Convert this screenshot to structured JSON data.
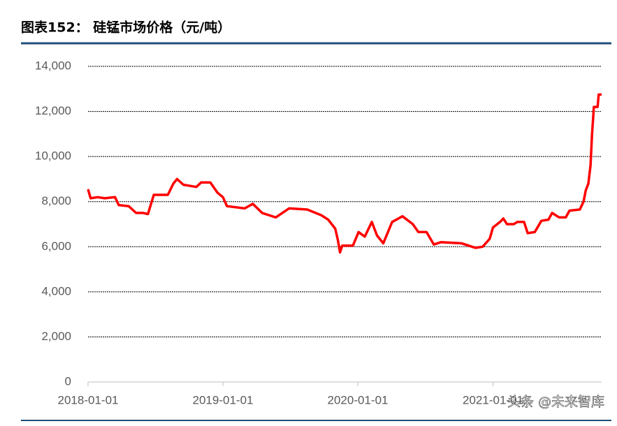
{
  "header": {
    "title": "图表152：  硅锰市场价格（元/吨）"
  },
  "watermark": "头条 @未来智库",
  "chart_data": {
    "type": "line",
    "x": [
      "2018-01-01",
      "2018-01-08",
      "2018-01-27",
      "2018-02-15",
      "2018-03-15",
      "2018-03-25",
      "2018-04-21",
      "2018-05-11",
      "2018-05-30",
      "2018-06-12",
      "2018-06-28",
      "2018-08-05",
      "2018-08-20",
      "2018-08-30",
      "2018-09-16",
      "2018-10-21",
      "2018-11-03",
      "2018-11-28",
      "2018-12-17",
      "2019-01-01",
      "2019-01-12",
      "2019-03-01",
      "2019-03-23",
      "2019-04-17",
      "2019-05-24",
      "2019-06-29",
      "2019-08-17",
      "2019-09-24",
      "2019-10-13",
      "2019-11-01",
      "2019-11-08",
      "2019-11-14",
      "2019-11-20",
      "2019-12-19",
      "2020-01-03",
      "2020-01-20",
      "2020-02-08",
      "2020-02-22",
      "2020-03-10",
      "2020-04-03",
      "2020-05-01",
      "2020-05-29",
      "2020-06-13",
      "2020-07-05",
      "2020-07-25",
      "2020-08-13",
      "2020-10-08",
      "2020-11-15",
      "2020-12-04",
      "2020-12-23",
      "2021-01-01",
      "2021-01-20",
      "2021-01-29",
      "2021-02-08",
      "2021-02-26",
      "2021-03-08",
      "2021-03-26",
      "2021-04-05",
      "2021-04-24",
      "2021-05-12",
      "2021-05-31",
      "2021-06-10",
      "2021-06-29",
      "2021-07-17",
      "2021-07-27",
      "2021-08-24",
      "2021-09-03",
      "2021-09-09",
      "2021-09-16",
      "2021-09-22",
      "2021-09-26",
      "2021-10-01",
      "2021-10-11",
      "2021-10-14",
      "2021-10-22"
    ],
    "series": [
      {
        "name": "硅锰",
        "color": "#ff0000",
        "values": [
          8550,
          8150,
          8200,
          8150,
          8200,
          7850,
          7800,
          7500,
          7500,
          7450,
          8300,
          8300,
          8800,
          9000,
          8750,
          8650,
          8850,
          8850,
          8400,
          8200,
          7800,
          7700,
          7900,
          7500,
          7300,
          7700,
          7650,
          7400,
          7200,
          6800,
          6300,
          5750,
          6050,
          6050,
          6650,
          6450,
          7100,
          6500,
          6150,
          7100,
          7350,
          7000,
          6650,
          6650,
          6100,
          6200,
          6150,
          5950,
          6000,
          6350,
          6850,
          7100,
          7250,
          7000,
          7000,
          7100,
          7100,
          6600,
          6650,
          7150,
          7200,
          7500,
          7300,
          7300,
          7600,
          7650,
          8000,
          8500,
          8800,
          9600,
          11000,
          12200,
          12200,
          12750,
          12750
        ]
      }
    ],
    "xlim": [
      "2018-01-01",
      "2021-10-22"
    ],
    "xticks": [
      "2018-01-01",
      "2019-01-01",
      "2020-01-01",
      "2021-01-01"
    ],
    "ylim": [
      0,
      14000
    ],
    "yticks": [
      0,
      {
        "value": 2000,
        "label": "2,000"
      },
      {
        "value": 4000,
        "label": "4,000"
      },
      {
        "value": 6000,
        "label": "6,000"
      },
      {
        "value": 8000,
        "label": "8,000"
      },
      {
        "value": 10000,
        "label": "10,000"
      },
      {
        "value": 12000,
        "label": "12,000"
      },
      {
        "value": 14000,
        "label": "14,000"
      }
    ],
    "grid": true
  }
}
